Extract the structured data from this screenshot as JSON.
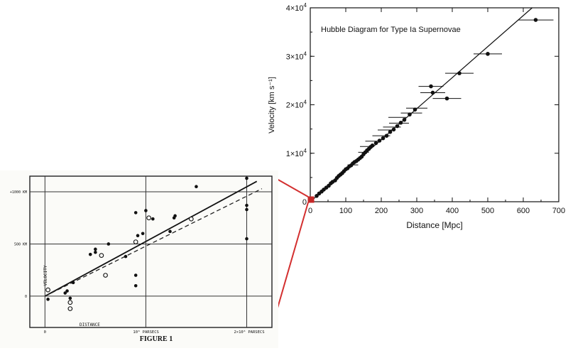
{
  "chart_data": [
    {
      "type": "scatter",
      "title": "Hubble Diagram for Type Ia Supernovae",
      "xlabel": "Distance [Mpc]",
      "ylabel": "Velocity [km s⁻¹]",
      "xlim": [
        0,
        700
      ],
      "ylim": [
        0,
        40000
      ],
      "x_ticks": [
        "0",
        "100",
        "200",
        "300",
        "400",
        "500",
        "600",
        "700"
      ],
      "y_ticks": [
        {
          "label": "0"
        },
        {
          "mantissa": "1×10",
          "exp": "4"
        },
        {
          "mantissa": "2×10",
          "exp": "4"
        },
        {
          "mantissa": "3×10",
          "exp": "4"
        },
        {
          "mantissa": "4×10",
          "exp": "4"
        }
      ],
      "fit_line": {
        "slope": 64,
        "intercept": 0
      },
      "points": [
        {
          "x": 18,
          "y": 1200
        },
        {
          "x": 25,
          "y": 1700
        },
        {
          "x": 32,
          "y": 2100
        },
        {
          "x": 38,
          "y": 2500
        },
        {
          "x": 45,
          "y": 2900
        },
        {
          "x": 52,
          "y": 3300
        },
        {
          "x": 58,
          "y": 3800
        },
        {
          "x": 63,
          "y": 4100
        },
        {
          "x": 70,
          "y": 4400
        },
        {
          "x": 75,
          "y": 4900
        },
        {
          "x": 80,
          "y": 5300
        },
        {
          "x": 85,
          "y": 5600
        },
        {
          "x": 90,
          "y": 5900
        },
        {
          "x": 95,
          "y": 6300
        },
        {
          "x": 100,
          "y": 6700
        },
        {
          "x": 105,
          "y": 6900
        },
        {
          "x": 110,
          "y": 7300
        },
        {
          "x": 115,
          "y": 7500
        },
        {
          "x": 120,
          "y": 7900
        },
        {
          "x": 125,
          "y": 8200
        },
        {
          "x": 130,
          "y": 8400
        },
        {
          "x": 135,
          "y": 8700
        },
        {
          "x": 140,
          "y": 9000
        },
        {
          "x": 145,
          "y": 9300
        },
        {
          "x": 150,
          "y": 9800
        },
        {
          "x": 155,
          "y": 10200
        },
        {
          "x": 160,
          "y": 10600
        },
        {
          "x": 165,
          "y": 10900
        },
        {
          "x": 170,
          "y": 11300
        },
        {
          "x": 175,
          "y": 11600
        },
        {
          "x": 185,
          "y": 12100
        },
        {
          "x": 195,
          "y": 12600
        },
        {
          "x": 205,
          "y": 13100
        },
        {
          "x": 215,
          "y": 13600
        },
        {
          "x": 225,
          "y": 14400
        },
        {
          "x": 235,
          "y": 14900
        },
        {
          "x": 245,
          "y": 15600
        },
        {
          "x": 255,
          "y": 16300
        },
        {
          "x": 265,
          "y": 16900
        },
        {
          "x": 280,
          "y": 18000
        },
        {
          "x": 295,
          "y": 19000
        },
        {
          "x": 340,
          "y": 23800
        },
        {
          "x": 345,
          "y": 22500
        },
        {
          "x": 385,
          "y": 21300
        },
        {
          "x": 420,
          "y": 26500
        },
        {
          "x": 500,
          "y": 30500
        },
        {
          "x": 635,
          "y": 37500
        }
      ],
      "xerr_points": [
        {
          "x": 120,
          "y": 7600,
          "xerr": 15
        },
        {
          "x": 150,
          "y": 10200,
          "xerr": 15
        },
        {
          "x": 160,
          "y": 11400,
          "xerr": 20
        },
        {
          "x": 175,
          "y": 12500,
          "xerr": 20
        },
        {
          "x": 200,
          "y": 13600,
          "xerr": 25
        },
        {
          "x": 215,
          "y": 14800,
          "xerr": 25
        },
        {
          "x": 230,
          "y": 15400,
          "xerr": 25
        },
        {
          "x": 245,
          "y": 17400,
          "xerr": 25
        },
        {
          "x": 250,
          "y": 16200,
          "xerr": 28
        },
        {
          "x": 285,
          "y": 18300,
          "xerr": 30
        },
        {
          "x": 300,
          "y": 19300,
          "xerr": 30
        },
        {
          "x": 340,
          "y": 23800,
          "xerr": 35
        },
        {
          "x": 345,
          "y": 22500,
          "xerr": 35
        },
        {
          "x": 385,
          "y": 21300,
          "xerr": 40
        },
        {
          "x": 420,
          "y": 26500,
          "xerr": 40
        },
        {
          "x": 500,
          "y": 30500,
          "xerr": 40
        },
        {
          "x": 635,
          "y": 37500,
          "xerr": 50
        }
      ]
    },
    {
      "type": "scatter",
      "title": "FIGURE 1",
      "xlabel": "DISTANCE",
      "ylabel": "VELOCITY",
      "xlim": [
        -0.15,
        2.25
      ],
      "ylim": [
        -300,
        1150
      ],
      "x_ticks": [
        {
          "label": "0",
          "x": 0
        },
        {
          "label": "10⁶ PARSECS",
          "x": 1
        },
        {
          "label": "2×10⁶ PARSECS",
          "x": 2
        }
      ],
      "y_ticks": [
        {
          "label": "0",
          "y": 0
        },
        {
          "label": "500 KM",
          "y": 500
        },
        {
          "label": "+1000 KM",
          "y": 1000
        }
      ],
      "solid_line": {
        "x": [
          0,
          2.1
        ],
        "y": [
          0,
          1100
        ]
      },
      "dashed_line": {
        "x": [
          0,
          2.15
        ],
        "y": [
          0,
          1030
        ]
      },
      "filled_points": [
        {
          "x": 0.03,
          "y": -30
        },
        {
          "x": 0.2,
          "y": 30
        },
        {
          "x": 0.22,
          "y": 50
        },
        {
          "x": 0.25,
          "y": -20
        },
        {
          "x": 0.28,
          "y": 130
        },
        {
          "x": 0.45,
          "y": 400
        },
        {
          "x": 0.5,
          "y": 450
        },
        {
          "x": 0.5,
          "y": 420
        },
        {
          "x": 0.63,
          "y": 500
        },
        {
          "x": 0.8,
          "y": 380
        },
        {
          "x": 0.9,
          "y": 200
        },
        {
          "x": 0.9,
          "y": 100
        },
        {
          "x": 0.92,
          "y": 580
        },
        {
          "x": 0.97,
          "y": 600
        },
        {
          "x": 0.9,
          "y": 800
        },
        {
          "x": 1.0,
          "y": 820
        },
        {
          "x": 1.07,
          "y": 740
        },
        {
          "x": 1.24,
          "y": 620
        },
        {
          "x": 1.28,
          "y": 750
        },
        {
          "x": 1.29,
          "y": 770
        },
        {
          "x": 1.5,
          "y": 1050
        },
        {
          "x": 2.0,
          "y": 1130
        },
        {
          "x": 2.0,
          "y": 870
        },
        {
          "x": 2.0,
          "y": 830
        },
        {
          "x": 2.0,
          "y": 550
        }
      ],
      "open_points": [
        {
          "x": 0.03,
          "y": 60
        },
        {
          "x": 0.25,
          "y": -60
        },
        {
          "x": 0.25,
          "y": -120
        },
        {
          "x": 0.56,
          "y": 390
        },
        {
          "x": 0.6,
          "y": 200
        },
        {
          "x": 0.9,
          "y": 520
        },
        {
          "x": 1.03,
          "y": 750
        },
        {
          "x": 1.45,
          "y": 740
        }
      ]
    }
  ]
}
